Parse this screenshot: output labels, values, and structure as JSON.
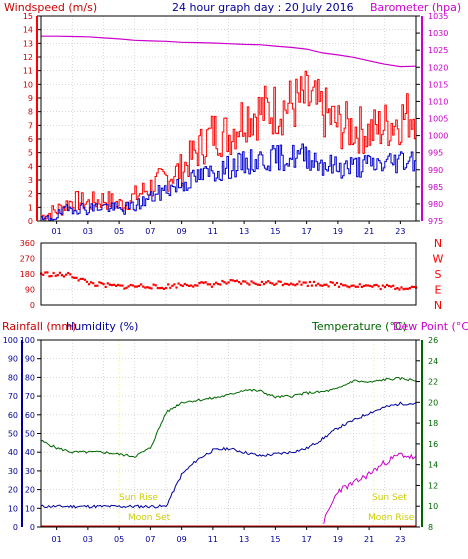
{
  "header": {
    "left_label": "Windspeed (m/s)",
    "center_title": "24 hour graph day : 20 July 2016",
    "right_label": "Barometer (hpa)"
  },
  "colors": {
    "frame": "#000000",
    "grid": "#c0c0c0",
    "navy": "#000099",
    "windspeed": "#ff0000",
    "windspeed_text": "#cc0000",
    "gust_fill": "#ffffff",
    "avg_wind": "#0000cc",
    "barometer": "#cc00cc",
    "direction": "#ff0000",
    "temperature": "#006600",
    "humidity": "#000099",
    "dewpoint": "#cc00cc",
    "rainfall": "#cc0000",
    "sun_moon_label": "#cccc00",
    "sun_rise_line": "#ffff00"
  },
  "chart_data": [
    {
      "type": "line",
      "title": "24 hour graph day : 20 July 2016",
      "x_ticks": [
        "01",
        "03",
        "05",
        "07",
        "09",
        "11",
        "13",
        "15",
        "17",
        "19",
        "21",
        "23"
      ],
      "y_left": {
        "label": "Windspeed (m/s)",
        "range": [
          0,
          15
        ],
        "ticks": [
          0,
          1,
          2,
          3,
          4,
          5,
          6,
          7,
          8,
          9,
          10,
          11,
          12,
          13,
          14,
          15
        ]
      },
      "y_right": {
        "label": "Barometer (hpa)",
        "range": [
          975,
          1035
        ],
        "ticks": [
          975,
          980,
          985,
          990,
          995,
          1000,
          1005,
          1010,
          1015,
          1020,
          1025,
          1030,
          1035
        ]
      },
      "x": [
        0,
        1,
        2,
        3,
        4,
        5,
        6,
        7,
        8,
        9,
        10,
        11,
        12,
        13,
        14,
        15,
        16,
        17,
        18,
        19,
        20,
        21,
        22,
        23,
        24
      ],
      "series": [
        {
          "name": "Windspeed (m/s)",
          "axis": "left",
          "values": [
            0.3,
            0.8,
            1.5,
            1.3,
            1.6,
            1.2,
            1.8,
            2.5,
            3.2,
            3.8,
            5.2,
            6.5,
            6.3,
            7.8,
            8.0,
            8.2,
            8.5,
            8.9,
            8.0,
            7.0,
            6.8,
            6.5,
            7.0,
            7.5,
            8.0
          ]
        },
        {
          "name": "Average wind",
          "axis": "left",
          "values": [
            0.0,
            0.4,
            1.0,
            0.9,
            1.1,
            0.8,
            1.1,
            1.7,
            2.3,
            2.7,
            3.2,
            3.6,
            3.9,
            4.2,
            4.5,
            4.6,
            4.7,
            4.8,
            4.2,
            3.9,
            4.0,
            4.1,
            4.2,
            4.5,
            4.6
          ]
        },
        {
          "name": "Barometer (hpa)",
          "axis": "right",
          "values": [
            1029.1,
            1029.1,
            1029.0,
            1028.9,
            1028.6,
            1028.3,
            1027.9,
            1027.7,
            1027.6,
            1027.3,
            1027.2,
            1027.1,
            1026.9,
            1026.7,
            1026.6,
            1026.2,
            1025.8,
            1025.3,
            1024.2,
            1023.6,
            1022.9,
            1021.9,
            1020.9,
            1020.2,
            1020.3
          ]
        }
      ]
    },
    {
      "type": "scatter",
      "title": "",
      "x_ticks": [],
      "y_left": {
        "range": [
          0,
          360
        ],
        "ticks": [
          0,
          90,
          180,
          270,
          360
        ]
      },
      "y_right_labels": [
        "N",
        "W",
        "S",
        "E",
        "N"
      ],
      "x": [
        0,
        0.5,
        1,
        1.5,
        2,
        3,
        4,
        5,
        6,
        7,
        7.5,
        8,
        9,
        10,
        11,
        12,
        13,
        14,
        15,
        16,
        17,
        18,
        19,
        20,
        21,
        22,
        23,
        24
      ],
      "series": [
        {
          "name": "Wind direction",
          "values": [
            182,
            180,
            175,
            175,
            172,
            130,
            115,
            108,
            110,
            112,
            97,
            108,
            118,
            122,
            120,
            132,
            128,
            126,
            130,
            128,
            125,
            124,
            118,
            116,
            110,
            105,
            102,
            105
          ]
        }
      ]
    },
    {
      "type": "line",
      "title": "",
      "x_ticks": [
        "01",
        "03",
        "05",
        "07",
        "09",
        "11",
        "13",
        "15",
        "17",
        "19",
        "21",
        "23"
      ],
      "y_left_outer": {
        "label": "Rainfall (mm)",
        "range": [
          0,
          100
        ],
        "ticks": [
          0,
          10,
          20,
          30,
          40,
          50,
          60,
          70,
          80,
          90,
          100
        ]
      },
      "y_left": {
        "label": "Humidity (%)",
        "range": [
          0,
          100
        ],
        "ticks": [
          0,
          10,
          20,
          30,
          40,
          50,
          60,
          70,
          80,
          90,
          100
        ]
      },
      "y_right": {
        "label": "Temperature (°C)",
        "range": [
          8,
          26
        ],
        "ticks": [
          8,
          10,
          12,
          14,
          16,
          18,
          20,
          22,
          24,
          26
        ]
      },
      "y_right_outer_label": "Dew Point (°C)",
      "x": [
        0,
        1,
        2,
        3,
        4,
        5,
        6,
        7,
        8,
        9,
        10,
        11,
        12,
        13,
        14,
        15,
        16,
        17,
        18,
        19,
        20,
        21,
        22,
        23,
        24
      ],
      "series": [
        {
          "name": "Temperature (°C)",
          "axis": "right",
          "values": [
            16.3,
            15.6,
            15.2,
            15.2,
            15.2,
            15.0,
            14.8,
            15.6,
            19.0,
            20.0,
            20.2,
            20.4,
            20.7,
            21.2,
            21.1,
            20.5,
            20.6,
            20.9,
            21.0,
            21.3,
            22.1,
            21.9,
            22.2,
            22.3,
            22.1
          ]
        },
        {
          "name": "Humidity (%)",
          "axis": "left",
          "values": [
            11,
            11,
            11,
            11,
            11,
            11,
            11,
            11,
            11,
            28,
            36,
            41,
            42,
            40,
            38,
            39,
            40,
            42,
            47,
            53,
            57,
            61,
            64,
            66,
            66
          ]
        },
        {
          "name": "Dew Point (°C)",
          "axis": "right",
          "values": [
            null,
            null,
            null,
            null,
            null,
            null,
            null,
            null,
            null,
            null,
            null,
            null,
            null,
            null,
            null,
            null,
            null,
            null,
            8.2,
            11.5,
            12.2,
            13.1,
            14.2,
            15.0,
            14.6
          ]
        },
        {
          "name": "Rainfall (mm)",
          "axis": "left_outer",
          "values": [
            0.5,
            0.5,
            0.5,
            0.5,
            0.5,
            0.5,
            0.5,
            0.5,
            0.5,
            0.5,
            0.5,
            0.5,
            0.5,
            0.5,
            0.5,
            0.5,
            0.5,
            0.5,
            0.5,
            0.5,
            0.5,
            0.5,
            0.5,
            0.5,
            0.5
          ]
        }
      ],
      "annotations": {
        "sun_rise": "Sun Rise",
        "sun_set": "Sun Set",
        "moon_set": "Moon Set",
        "moon_rise": "Moon Rise"
      }
    }
  ],
  "panel3_labels": {
    "rainfall": "Rainfall (mm)",
    "humidity": "Humidity (%)",
    "temperature": "Temperature (°C)",
    "dewpoint": "Dew Point (°C)"
  }
}
